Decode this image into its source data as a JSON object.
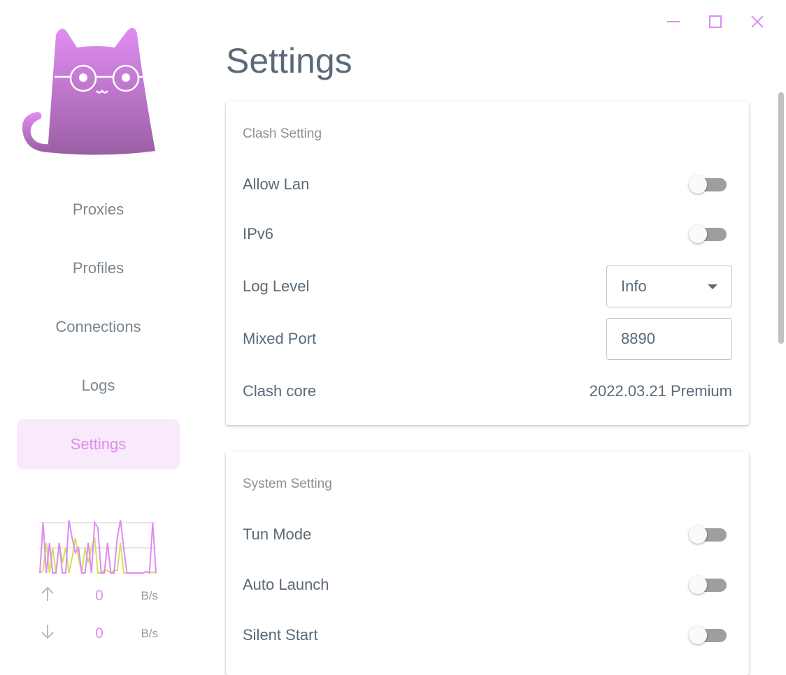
{
  "window": {
    "controls": [
      "minimize-icon",
      "maximize-icon",
      "close-icon"
    ],
    "accent": "#de8cf0"
  },
  "sidebar": {
    "items": [
      {
        "label": "Proxies"
      },
      {
        "label": "Profiles"
      },
      {
        "label": "Connections"
      },
      {
        "label": "Logs"
      },
      {
        "label": "Settings",
        "active": true
      }
    ],
    "traffic": {
      "upload_color": "#de8cf0",
      "download_color": "#d4e157",
      "upload_series": [
        0,
        1.0,
        0,
        0.6,
        0,
        0,
        0.6,
        0,
        0,
        1.05,
        0.7,
        0.4,
        0.5,
        0,
        0,
        0.6,
        0,
        1.0,
        0.9,
        0,
        0,
        0.6,
        0,
        0,
        0.7,
        1.05,
        0.5,
        0,
        0,
        0,
        0,
        0,
        0,
        0.03,
        0,
        1.0,
        0
      ],
      "download_series": [
        0,
        0.05,
        0.6,
        0,
        0.5,
        0,
        0.6,
        0.2,
        0.5,
        0,
        0.3,
        0.7,
        0.3,
        0,
        0.5,
        0.2,
        0.5,
        0.7,
        0,
        0,
        0.05,
        0.05,
        0,
        0.05,
        0.05,
        0.6,
        0,
        0,
        0,
        0,
        0,
        0,
        0,
        0.02,
        0,
        0.02,
        0
      ],
      "upload": {
        "value": "0",
        "unit": "B/s"
      },
      "download": {
        "value": "0",
        "unit": "B/s"
      }
    }
  },
  "main": {
    "title": "Settings",
    "clash": {
      "title": "Clash Setting",
      "allow_lan": {
        "label": "Allow Lan",
        "on": false
      },
      "ipv6": {
        "label": "IPv6",
        "on": false
      },
      "log_level": {
        "label": "Log Level",
        "value": "Info"
      },
      "mixed_port": {
        "label": "Mixed Port",
        "value": "8890"
      },
      "core": {
        "label": "Clash core",
        "value": "2022.03.21 Premium"
      }
    },
    "system": {
      "title": "System Setting",
      "tun": {
        "label": "Tun Mode",
        "on": false
      },
      "auto_launch": {
        "label": "Auto Launch",
        "on": false
      },
      "silent": {
        "label": "Silent Start",
        "on": false
      }
    }
  }
}
